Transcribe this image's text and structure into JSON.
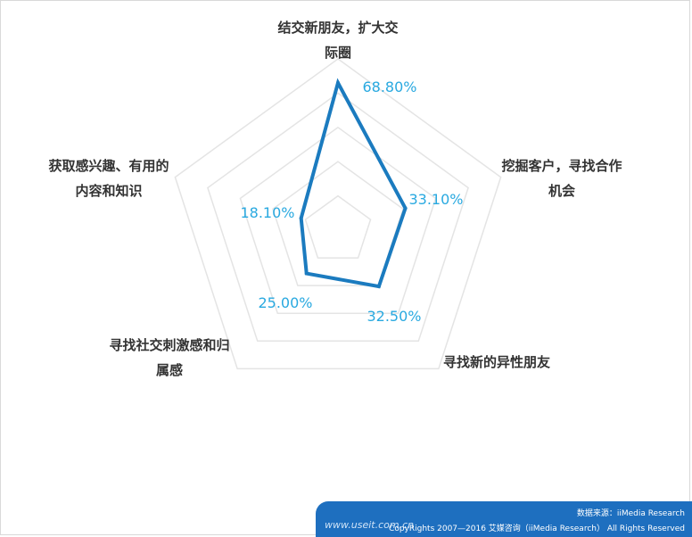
{
  "chart_data": {
    "type": "radar",
    "categories": [
      [
        "结交新朋友，扩大交",
        "际圈"
      ],
      [
        "挖掘客户，寻找合作",
        "机会"
      ],
      [
        "寻找新的异性朋友"
      ],
      [
        "寻找社交刺激感和归",
        "属感"
      ],
      [
        "获取感兴趣、有用的",
        "内容和知识"
      ]
    ],
    "values": [
      68.8,
      33.1,
      32.5,
      25.0,
      18.1
    ],
    "value_labels": [
      "68.80%",
      "33.10%",
      "32.50%",
      "25.00%",
      "18.10%"
    ],
    "range": [
      0,
      80
    ],
    "grid": true,
    "series_color": "#1b7bbf",
    "grid_color": "#e4e4e4",
    "label_color": "#29a9e0"
  },
  "footer": {
    "source": "数据来源：iiMedia Research",
    "copyright": "CopyRights 2007—2016 艾媒咨询（iiMedia Research） All Rights Reserved",
    "watermark": "www.useit.com.cn"
  }
}
